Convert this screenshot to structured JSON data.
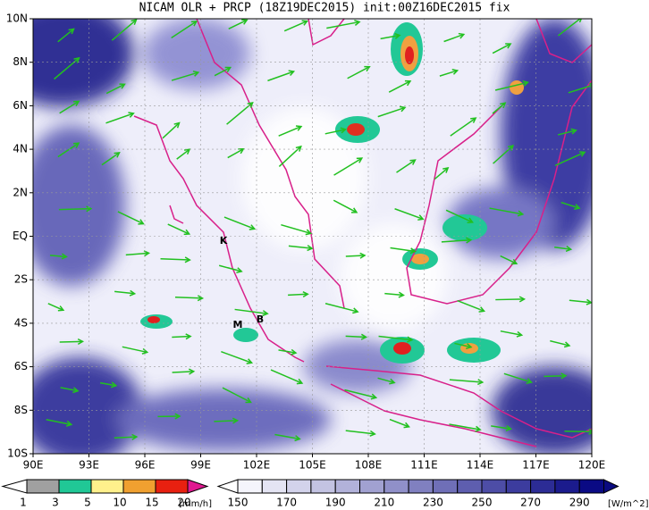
{
  "title": "NICAM OLR + PRCP (18Z19DEC2015) init:00Z16DEC2015 fix",
  "map": {
    "lat_labels": [
      "10N",
      "8N",
      "6N",
      "4N",
      "2N",
      "EQ",
      "2S",
      "4S",
      "6S",
      "8S",
      "10S"
    ],
    "lon_labels": [
      "90E",
      "93E",
      "96E",
      "99E",
      "102E",
      "105E",
      "108E",
      "111E",
      "114E",
      "117E",
      "120E"
    ],
    "places": [
      {
        "label": "K"
      },
      {
        "label": "M"
      },
      {
        "label": "B"
      }
    ]
  },
  "precip_legend": {
    "labels": [
      "1",
      "3",
      "5",
      "10",
      "15",
      "20"
    ],
    "unit": "[mm/h]"
  },
  "olr_legend": {
    "labels": [
      "150",
      "170",
      "190",
      "210",
      "230",
      "250",
      "270",
      "290"
    ],
    "unit": "[W/m^2]"
  }
}
